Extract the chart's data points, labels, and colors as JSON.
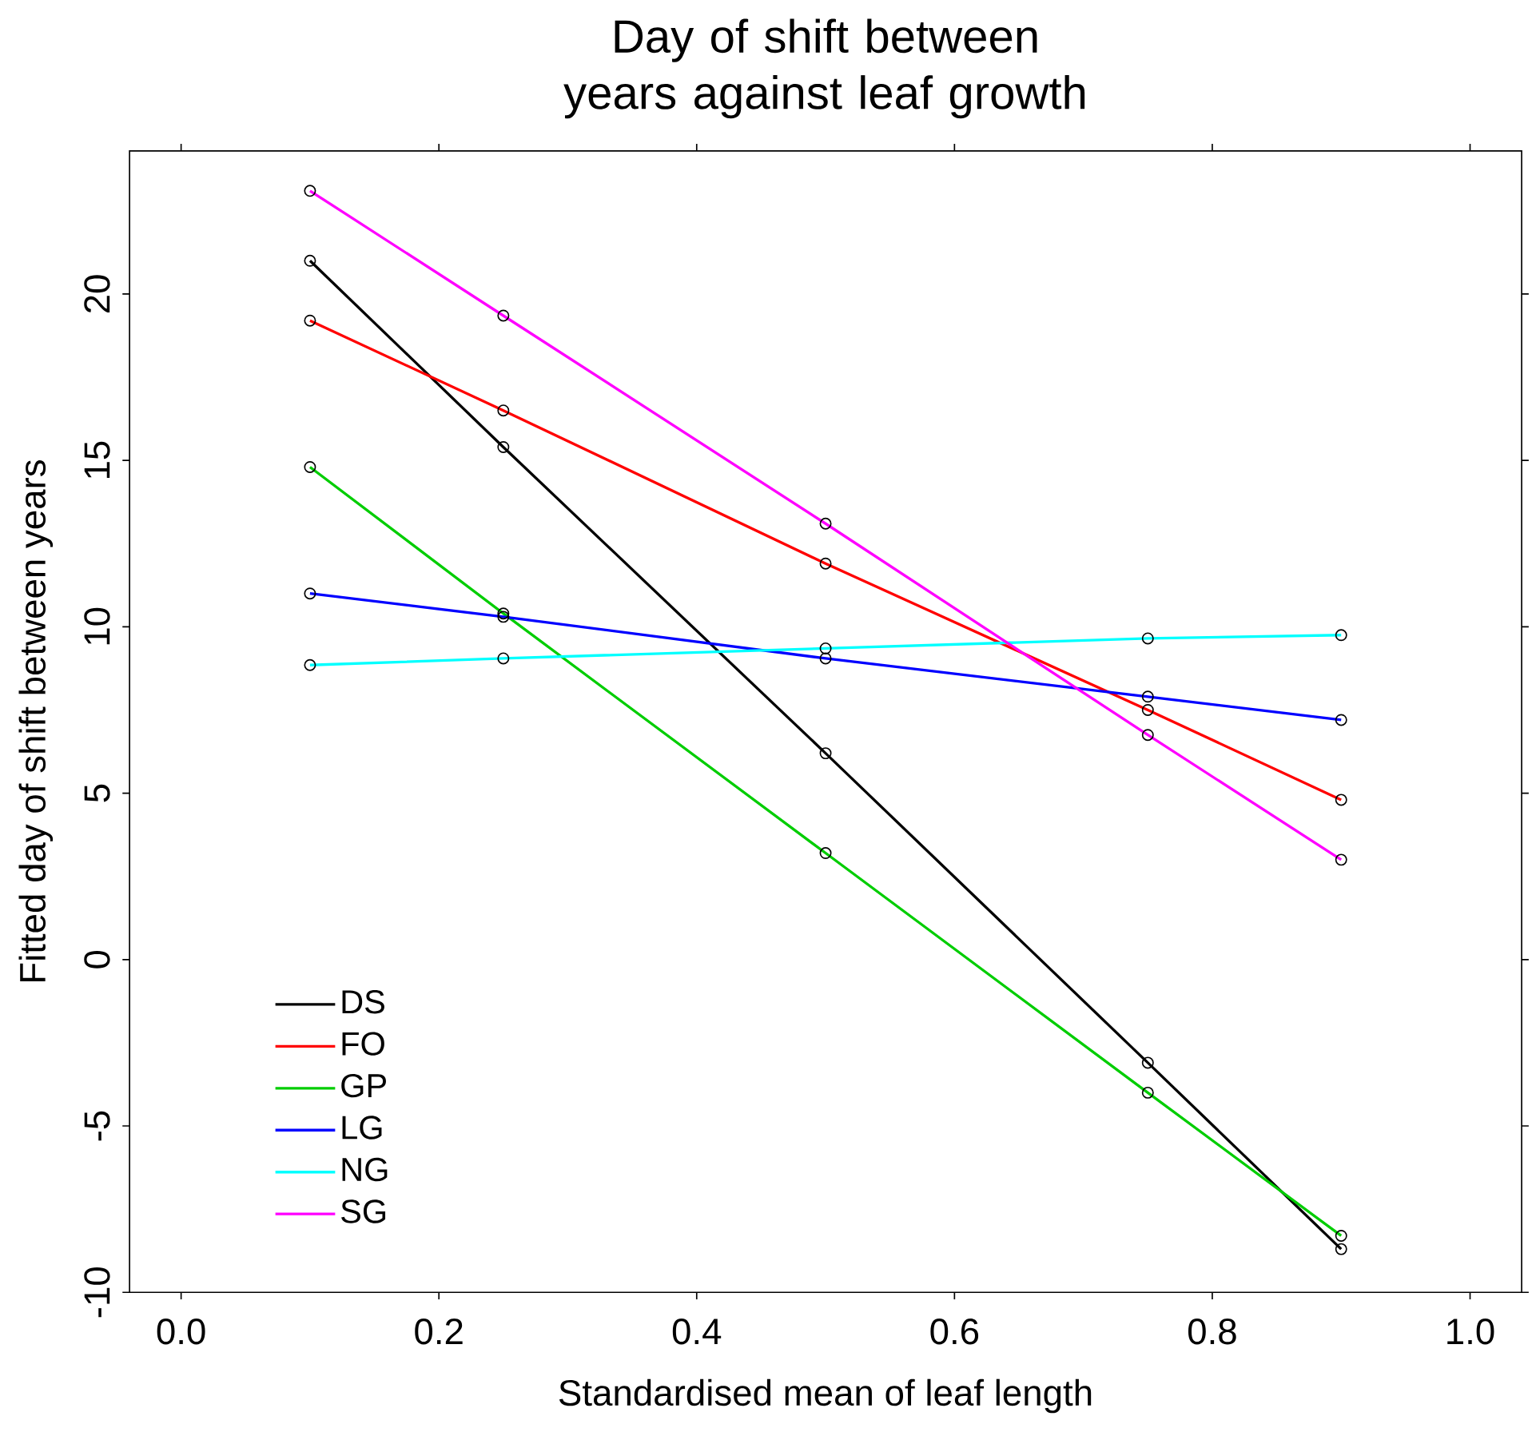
{
  "chart_data": {
    "type": "line",
    "title": "Day of shift between years against leaf growth",
    "xlabel": "Standardised mean of leaf length",
    "ylabel": "Fitted day of shift between years",
    "x": [
      0.1,
      0.25,
      0.5,
      0.75,
      0.9
    ],
    "series": [
      {
        "name": "DS",
        "color": "#000000",
        "values": [
          21.0,
          15.4,
          6.2,
          -3.1,
          -8.7
        ]
      },
      {
        "name": "FO",
        "color": "#ff0000",
        "values": [
          19.2,
          16.5,
          11.9,
          7.5,
          4.8
        ]
      },
      {
        "name": "GP",
        "color": "#00cd00",
        "values": [
          14.8,
          10.4,
          3.2,
          -4.0,
          -8.3
        ]
      },
      {
        "name": "LG",
        "color": "#0000ff",
        "values": [
          11.0,
          10.3,
          9.05,
          7.9,
          7.2
        ]
      },
      {
        "name": "NG",
        "color": "#00ffff",
        "values": [
          8.85,
          9.05,
          9.35,
          9.65,
          9.75
        ]
      },
      {
        "name": "SG",
        "color": "#ff00ff",
        "values": [
          23.1,
          19.35,
          13.1,
          6.75,
          3.0
        ]
      }
    ],
    "xlim": [
      -0.04,
      1.04
    ],
    "ylim": [
      -10.0,
      24.3
    ],
    "xticks": [
      {
        "value": 0,
        "label": "0.0"
      },
      {
        "value": 0.2,
        "label": "0.2"
      },
      {
        "value": 0.4,
        "label": "0.4"
      },
      {
        "value": 0.6,
        "label": "0.6"
      },
      {
        "value": 0.8,
        "label": "0.8"
      },
      {
        "value": 1,
        "label": "1.0"
      }
    ],
    "yticks": [
      -10,
      -5,
      0,
      5,
      10,
      15,
      20
    ],
    "marker": "circle",
    "grid": false,
    "legend": "bottom left"
  }
}
